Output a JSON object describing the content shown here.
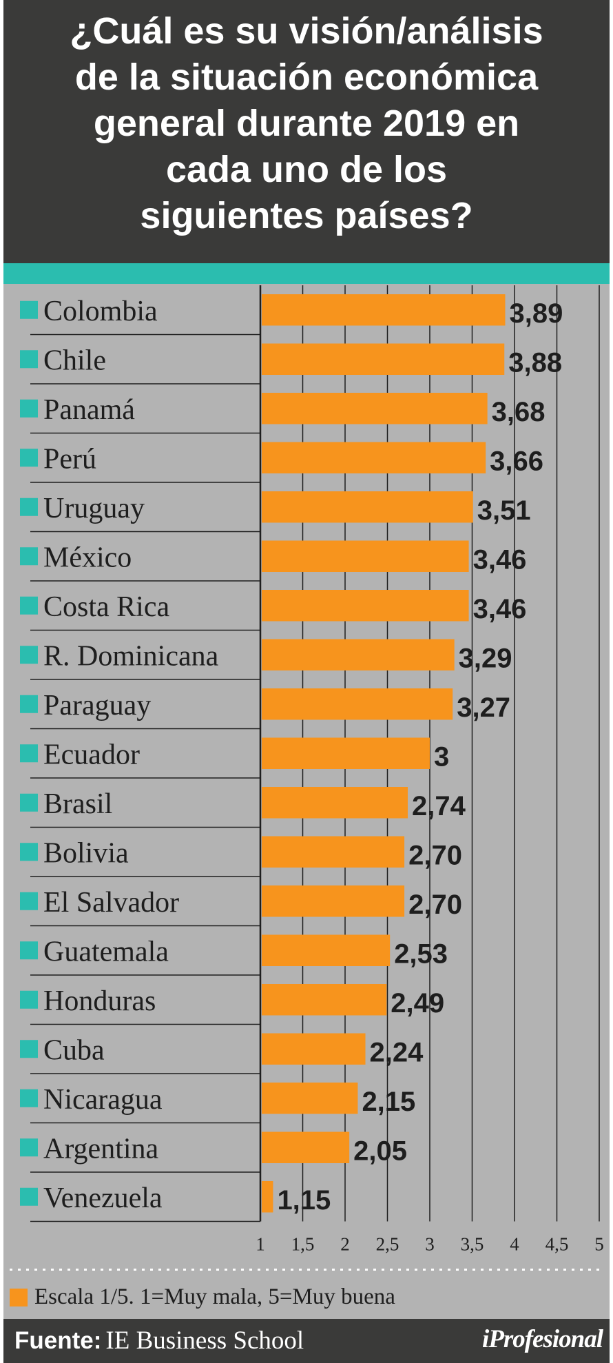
{
  "title": "¿Cuál es su visión/análisis\nde la situación económica\ngeneral durante 2019 en\ncada uno de los\nsiguientes países?",
  "colors": {
    "header_bg": "#3a3a39",
    "teal": "#2bbdaf",
    "bar": "#f7941d",
    "panel_bg": "#b3b3b3"
  },
  "chart_data": {
    "type": "bar",
    "orientation": "horizontal",
    "categories": [
      "Colombia",
      "Chile",
      "Panamá",
      "Perú",
      "Uruguay",
      "México",
      "Costa Rica",
      "R. Dominicana",
      "Paraguay",
      "Ecuador",
      "Brasil",
      "Bolivia",
      "El Salvador",
      "Guatemala",
      "Honduras",
      "Cuba",
      "Nicaragua",
      "Argentina",
      "Venezuela"
    ],
    "values": [
      3.89,
      3.88,
      3.68,
      3.66,
      3.51,
      3.46,
      3.46,
      3.29,
      3.27,
      3,
      2.74,
      2.7,
      2.7,
      2.53,
      2.49,
      2.24,
      2.15,
      2.05,
      1.15
    ],
    "value_labels": [
      "3,89",
      "3,88",
      "3,68",
      "3,66",
      "3,51",
      "3,46",
      "3,46",
      "3,29",
      "3,27",
      "3",
      "2,74",
      "2,70",
      "2,70",
      "2,53",
      "2,49",
      "2,24",
      "2,15",
      "2,05",
      "1,15"
    ],
    "xlim": [
      1,
      5
    ],
    "x_ticks": [
      1,
      1.5,
      2,
      2.5,
      3,
      3.5,
      4,
      4.5,
      5
    ],
    "x_tick_labels": [
      "1",
      "1,5",
      "2",
      "2,5",
      "3",
      "3,5",
      "4",
      "4,5",
      "5"
    ],
    "grid": true,
    "legend": "bottom-left"
  },
  "legend": {
    "label": "Escala 1/5. 1=Muy mala, 5=Muy buena"
  },
  "footer": {
    "source_label": "Fuente:",
    "source_name": "IE Business School",
    "logo": "iProfesional"
  }
}
